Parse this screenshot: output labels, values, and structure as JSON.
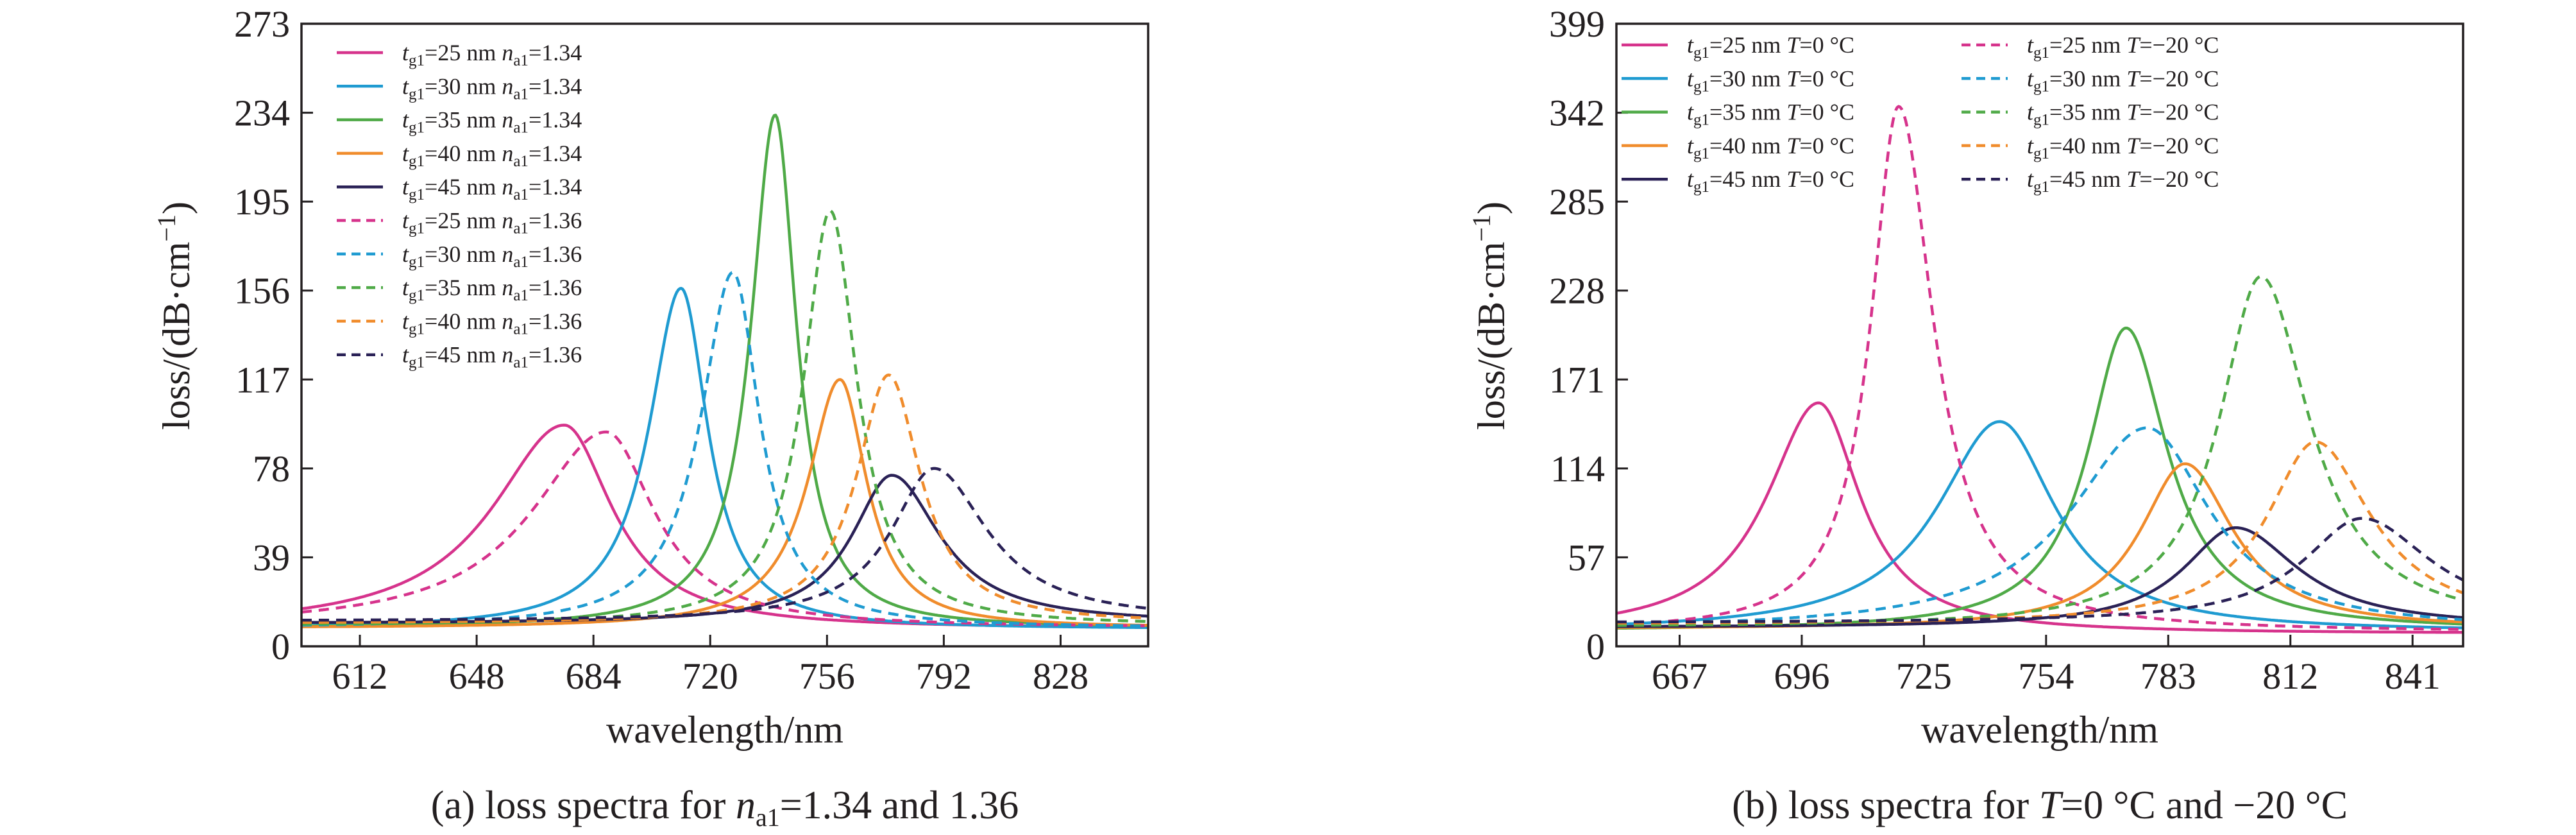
{
  "figure": {
    "colors": {
      "magenta": "#d6338c",
      "cyan": "#1f9bd1",
      "green": "#4faa47",
      "orange": "#f08c2c",
      "navy": "#2a2156",
      "axis": "#231f20"
    }
  },
  "chart_data": [
    {
      "type": "line",
      "panel": "a",
      "caption": "(a) loss spectra for n_a1=1.34 and 1.36",
      "caption_parts": [
        "(a) loss spectra for ",
        "n",
        "a1",
        "=1.34 and 1.36"
      ],
      "xlabel": "wavelength/nm",
      "ylabel": "loss/(dB·cm⁻¹)",
      "ylabel_parts": [
        "loss/(dB·cm",
        "−1",
        ")"
      ],
      "xlim": [
        594,
        855
      ],
      "ylim": [
        0,
        273
      ],
      "xticks": [
        612,
        648,
        684,
        720,
        756,
        792,
        828
      ],
      "yticks": [
        0,
        39,
        78,
        117,
        156,
        195,
        234,
        273
      ],
      "legend_position": "top-left",
      "series": [
        {
          "name": "tg1=25 nm na1=1.34",
          "label": {
            "pre": "t",
            "s1": "g1",
            "mid": "=25 nm ",
            "v": "n",
            "s2": "a1",
            "post": "=1.34"
          },
          "color": "magenta",
          "dash": false,
          "peak_x": 675,
          "peak_y": 97,
          "width_left": 27,
          "width_right": 18,
          "baseline": 7.5
        },
        {
          "name": "tg1=30 nm na1=1.34",
          "label": {
            "pre": "t",
            "s1": "g1",
            "mid": "=30 nm ",
            "v": "n",
            "s2": "a1",
            "post": "=1.34"
          },
          "color": "cyan",
          "dash": false,
          "peak_x": 711,
          "peak_y": 157,
          "width_left": 12,
          "width_right": 10,
          "baseline": 7.5
        },
        {
          "name": "tg1=35 nm na1=1.34",
          "label": {
            "pre": "t",
            "s1": "g1",
            "mid": "=35 nm ",
            "v": "n",
            "s2": "a1",
            "post": "=1.34"
          },
          "color": "green",
          "dash": false,
          "peak_x": 740,
          "peak_y": 233,
          "width_left": 9,
          "width_right": 8,
          "baseline": 8
        },
        {
          "name": "tg1=40 nm na1=1.34",
          "label": {
            "pre": "t",
            "s1": "g1",
            "mid": "=40 nm ",
            "v": "n",
            "s2": "a1",
            "post": "=1.34"
          },
          "color": "orange",
          "dash": false,
          "peak_x": 760,
          "peak_y": 117,
          "width_left": 12,
          "width_right": 10,
          "baseline": 8
        },
        {
          "name": "tg1=45 nm na1=1.34",
          "label": {
            "pre": "t",
            "s1": "g1",
            "mid": "=45 nm ",
            "v": "n",
            "s2": "a1",
            "post": "=1.34"
          },
          "color": "navy",
          "dash": false,
          "peak_x": 776,
          "peak_y": 75,
          "width_left": 15,
          "width_right": 18,
          "baseline": 10
        },
        {
          "name": "tg1=25 nm na1=1.36",
          "label": {
            "pre": "t",
            "s1": "g1",
            "mid": "=25 nm ",
            "v": "n",
            "s2": "a1",
            "post": "=1.36"
          },
          "color": "magenta",
          "dash": true,
          "peak_x": 688,
          "peak_y": 94,
          "width_left": 28,
          "width_right": 18,
          "baseline": 8
        },
        {
          "name": "tg1=30 nm na1=1.36",
          "label": {
            "pre": "t",
            "s1": "g1",
            "mid": "=30 nm ",
            "v": "n",
            "s2": "a1",
            "post": "=1.36"
          },
          "color": "cyan",
          "dash": true,
          "peak_x": 727,
          "peak_y": 164,
          "width_left": 12,
          "width_right": 10,
          "baseline": 8
        },
        {
          "name": "tg1=35 nm na1=1.36",
          "label": {
            "pre": "t",
            "s1": "g1",
            "mid": "=35 nm ",
            "v": "n",
            "s2": "a1",
            "post": "=1.36"
          },
          "color": "green",
          "dash": true,
          "peak_x": 757,
          "peak_y": 191,
          "width_left": 10,
          "width_right": 10,
          "baseline": 9
        },
        {
          "name": "tg1=40 nm na1=1.36",
          "label": {
            "pre": "t",
            "s1": "g1",
            "mid": "=40 nm ",
            "v": "n",
            "s2": "a1",
            "post": "=1.36"
          },
          "color": "orange",
          "dash": true,
          "peak_x": 775,
          "peak_y": 119,
          "width_left": 12,
          "width_right": 12,
          "baseline": 10
        },
        {
          "name": "tg1=45 nm na1=1.36",
          "label": {
            "pre": "t",
            "s1": "g1",
            "mid": "=45 nm ",
            "v": "n",
            "s2": "a1",
            "post": "=1.36"
          },
          "color": "navy",
          "dash": true,
          "peak_x": 789,
          "peak_y": 78,
          "width_left": 16,
          "width_right": 20,
          "baseline": 11
        }
      ]
    },
    {
      "type": "line",
      "panel": "b",
      "caption": "(b) loss spectra for T=0 °C and −20 °C",
      "caption_parts": [
        "(b) loss spectra for ",
        "T",
        "=0 °C and −20 °C"
      ],
      "xlabel": "wavelength/nm",
      "ylabel": "loss/(dB·cm⁻¹)",
      "ylabel_parts": [
        "loss/(dB·cm",
        "−1",
        ")"
      ],
      "xlim": [
        652,
        853
      ],
      "ylim": [
        0,
        399
      ],
      "xticks": [
        667,
        696,
        725,
        754,
        783,
        812,
        841
      ],
      "yticks": [
        0,
        57,
        114,
        171,
        228,
        285,
        342,
        399
      ],
      "legend_position": "top",
      "series": [
        {
          "name": "tg1=25 nm T=0 °C",
          "label": {
            "pre": "t",
            "s1": "g1",
            "mid": "=25 nm ",
            "v": "T",
            "s2": "",
            "post": "=0 °C"
          },
          "color": "magenta",
          "dash": false,
          "peak_x": 700,
          "peak_y": 156,
          "width_left": 15,
          "width_right": 12,
          "baseline": 8
        },
        {
          "name": "tg1=30 nm T=0 °C",
          "label": {
            "pre": "t",
            "s1": "g1",
            "mid": "=30 nm ",
            "v": "T",
            "s2": "",
            "post": "=0 °C"
          },
          "color": "cyan",
          "dash": false,
          "peak_x": 743,
          "peak_y": 144,
          "width_left": 18,
          "width_right": 16,
          "baseline": 9
        },
        {
          "name": "tg1=35 nm T=0 °C",
          "label": {
            "pre": "t",
            "s1": "g1",
            "mid": "=35 nm ",
            "v": "T",
            "s2": "",
            "post": "=0 °C"
          },
          "color": "green",
          "dash": false,
          "peak_x": 773,
          "peak_y": 204,
          "width_left": 11,
          "width_right": 12,
          "baseline": 10
        },
        {
          "name": "tg1=40 nm T=0 °C",
          "label": {
            "pre": "t",
            "s1": "g1",
            "mid": "=40 nm ",
            "v": "T",
            "s2": "",
            "post": "=0 °C"
          },
          "color": "orange",
          "dash": false,
          "peak_x": 787,
          "peak_y": 117,
          "width_left": 13,
          "width_right": 14,
          "baseline": 11
        },
        {
          "name": "tg1=45 nm T=0 °C",
          "label": {
            "pre": "t",
            "s1": "g1",
            "mid": "=45 nm ",
            "v": "T",
            "s2": "",
            "post": "=0 °C"
          },
          "color": "navy",
          "dash": false,
          "peak_x": 799,
          "peak_y": 76,
          "width_left": 15,
          "width_right": 18,
          "baseline": 12
        },
        {
          "name": "tg1=25 nm T=−20 °C",
          "label": {
            "pre": "t",
            "s1": "g1",
            "mid": "=25 nm ",
            "v": "T",
            "s2": "",
            "post": "=−20 °C"
          },
          "color": "magenta",
          "dash": true,
          "peak_x": 719,
          "peak_y": 346,
          "width_left": 8,
          "width_right": 10,
          "baseline": 9
        },
        {
          "name": "tg1=30 nm T=−20 °C",
          "label": {
            "pre": "t",
            "s1": "g1",
            "mid": "=30 nm ",
            "v": "T",
            "s2": "",
            "post": "=−20 °C"
          },
          "color": "cyan",
          "dash": true,
          "peak_x": 778,
          "peak_y": 140,
          "width_left": 22,
          "width_right": 18,
          "baseline": 10
        },
        {
          "name": "tg1=35 nm T=−20 °C",
          "label": {
            "pre": "t",
            "s1": "g1",
            "mid": "=35 nm ",
            "v": "T",
            "s2": "",
            "post": "=−20 °C"
          },
          "color": "green",
          "dash": true,
          "peak_x": 805,
          "peak_y": 237,
          "width_left": 12,
          "width_right": 14,
          "baseline": 12
        },
        {
          "name": "tg1=40 nm T=−20 °C",
          "label": {
            "pre": "t",
            "s1": "g1",
            "mid": "=40 nm ",
            "v": "T",
            "s2": "",
            "post": "=−20 °C"
          },
          "color": "orange",
          "dash": true,
          "peak_x": 818,
          "peak_y": 131,
          "width_left": 14,
          "width_right": 16,
          "baseline": 14
        },
        {
          "name": "tg1=45 nm T=−20 °C",
          "label": {
            "pre": "t",
            "s1": "g1",
            "mid": "=45 nm ",
            "v": "T",
            "s2": "",
            "post": "=−20 °C"
          },
          "color": "navy",
          "dash": true,
          "peak_x": 829,
          "peak_y": 82,
          "width_left": 17,
          "width_right": 20,
          "baseline": 15
        }
      ]
    }
  ]
}
